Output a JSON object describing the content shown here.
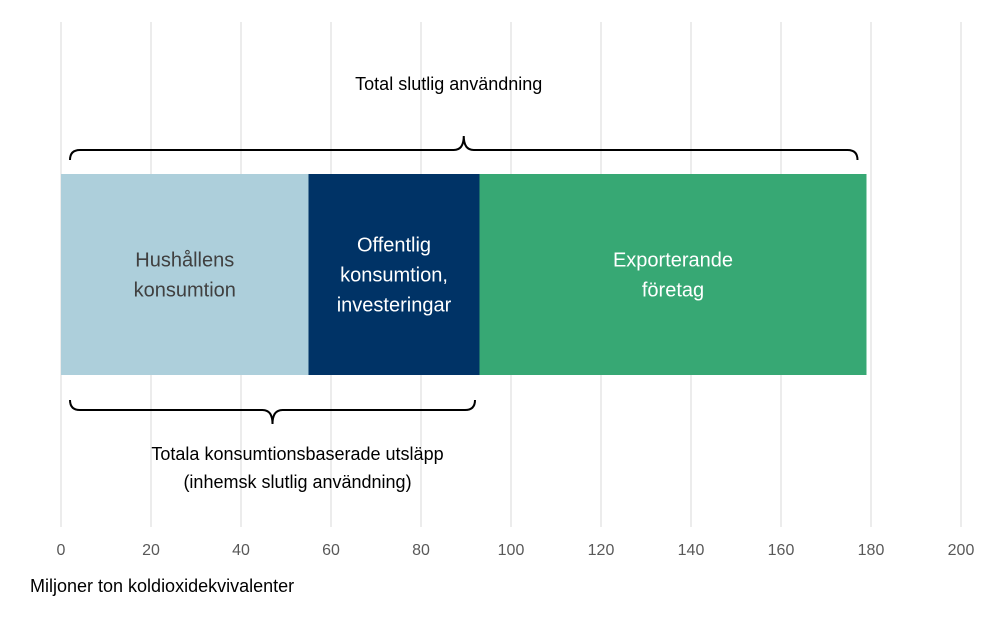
{
  "chart_data": {
    "type": "bar",
    "orientation": "horizontal",
    "stacked": true,
    "xlabel": "Miljoner ton koldioxidekvivalenter",
    "xlim": [
      0,
      200
    ],
    "xticks": [
      0,
      20,
      40,
      60,
      80,
      100,
      120,
      140,
      160,
      180,
      200
    ],
    "grid": "vertical",
    "series": [
      {
        "name": "Hushållens konsumtion",
        "label_lines": [
          "Hushållens",
          "konsumtion"
        ],
        "value": 55,
        "color": "#adcfdb",
        "text_color": "#404040"
      },
      {
        "name": "Offentlig konsumtion, investeringar",
        "label_lines": [
          "Offentlig",
          "konsumtion,",
          "investeringar"
        ],
        "value": 38,
        "color": "#003366",
        "text_color": "#ffffff"
      },
      {
        "name": "Exporterande företag",
        "label_lines": [
          "Exporterande",
          "företag"
        ],
        "value": 86,
        "color": "#37a874",
        "text_color": "#ffffff"
      }
    ],
    "annotations": [
      {
        "text": "Total slutlig användning",
        "position": "above",
        "from": 2,
        "to": 177
      },
      {
        "text": "Totala konsumtionsbaserade utsläpp",
        "text2": "(inhemsk slutlig användning)",
        "position": "below",
        "from": 2,
        "to": 92
      }
    ]
  }
}
